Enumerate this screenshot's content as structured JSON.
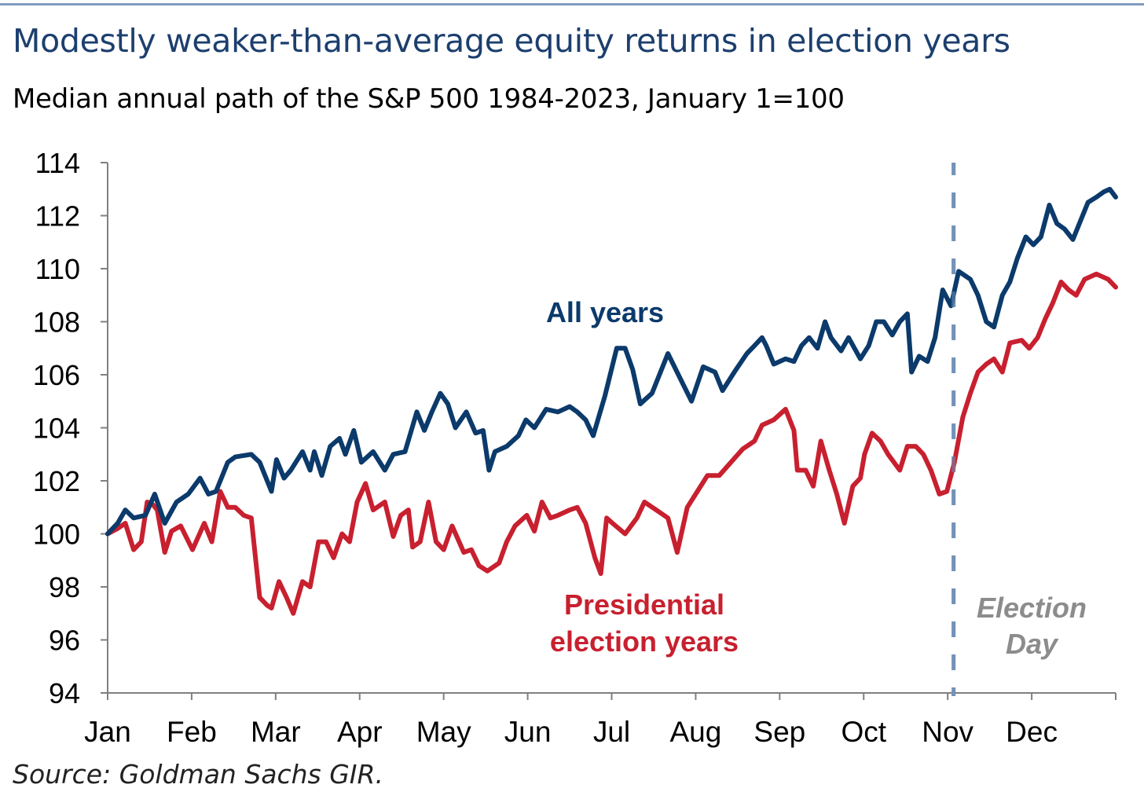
{
  "chart_data": {
    "type": "line",
    "title": "Modestly weaker-than-average equity returns in election years",
    "subtitle": "Median annual path of the S&P 500 1984-2023, January 1=100",
    "source": "Source: Goldman Sachs GIR.",
    "xlabel": "",
    "ylabel": "",
    "x_units": "months since January 1",
    "xlim": [
      0,
      12
    ],
    "ylim": [
      94,
      114
    ],
    "yticks": [
      94,
      96,
      98,
      100,
      102,
      104,
      106,
      108,
      110,
      112,
      114
    ],
    "ytick_labels": [
      "94",
      "96",
      "98",
      "100",
      "102",
      "104",
      "106",
      "108",
      "110",
      "112",
      "114"
    ],
    "xtick_labels": [
      "Jan",
      "Feb",
      "Mar",
      "Apr",
      "May",
      "Jun",
      "Jul",
      "Aug",
      "Sep",
      "Oct",
      "Nov",
      "Dec"
    ],
    "grid": false,
    "annotations": {
      "all_years_label": "All years",
      "election_label_line1": "Presidential",
      "election_label_line2": "election years",
      "election_day_line1": "Election",
      "election_day_line2": "Day",
      "election_day_x": 10.07
    },
    "colors": {
      "all_years": "#0b3a6b",
      "election_years": "#c8202f",
      "election_day": "#7392b8",
      "election_day_text": "#8c8c8c"
    },
    "series": [
      {
        "name": "All years",
        "points": [
          [
            0,
            100.0
          ],
          [
            0.12,
            100.4
          ],
          [
            0.21,
            100.9
          ],
          [
            0.31,
            100.6
          ],
          [
            0.45,
            100.7
          ],
          [
            0.56,
            101.5
          ],
          [
            0.68,
            100.4
          ],
          [
            0.82,
            101.2
          ],
          [
            0.96,
            101.5
          ],
          [
            1.1,
            102.1
          ],
          [
            1.2,
            101.5
          ],
          [
            1.29,
            101.6
          ],
          [
            1.43,
            102.7
          ],
          [
            1.52,
            102.9
          ],
          [
            1.71,
            103.0
          ],
          [
            1.81,
            102.7
          ],
          [
            1.95,
            101.6
          ],
          [
            2.01,
            102.8
          ],
          [
            2.1,
            102.1
          ],
          [
            2.18,
            102.4
          ],
          [
            2.32,
            103.1
          ],
          [
            2.41,
            102.4
          ],
          [
            2.46,
            103.1
          ],
          [
            2.55,
            102.2
          ],
          [
            2.65,
            103.3
          ],
          [
            2.76,
            103.6
          ],
          [
            2.83,
            103.0
          ],
          [
            2.93,
            103.9
          ],
          [
            3.02,
            102.7
          ],
          [
            3.16,
            103.1
          ],
          [
            3.3,
            102.4
          ],
          [
            3.4,
            103.0
          ],
          [
            3.54,
            103.1
          ],
          [
            3.68,
            104.6
          ],
          [
            3.77,
            103.9
          ],
          [
            3.86,
            104.6
          ],
          [
            3.96,
            105.3
          ],
          [
            4.05,
            104.9
          ],
          [
            4.14,
            104.0
          ],
          [
            4.27,
            104.6
          ],
          [
            4.38,
            103.8
          ],
          [
            4.47,
            103.9
          ],
          [
            4.54,
            102.4
          ],
          [
            4.61,
            103.1
          ],
          [
            4.75,
            103.3
          ],
          [
            4.89,
            103.7
          ],
          [
            4.98,
            104.3
          ],
          [
            5.08,
            104.0
          ],
          [
            5.22,
            104.7
          ],
          [
            5.36,
            104.6
          ],
          [
            5.5,
            104.8
          ],
          [
            5.59,
            104.6
          ],
          [
            5.69,
            104.3
          ],
          [
            5.78,
            103.7
          ],
          [
            5.92,
            105.2
          ],
          [
            6.06,
            107.0
          ],
          [
            6.16,
            107.0
          ],
          [
            6.25,
            106.2
          ],
          [
            6.34,
            104.9
          ],
          [
            6.48,
            105.3
          ],
          [
            6.67,
            106.8
          ],
          [
            6.81,
            105.9
          ],
          [
            6.95,
            105.0
          ],
          [
            7.09,
            106.3
          ],
          [
            7.23,
            106.1
          ],
          [
            7.32,
            105.4
          ],
          [
            7.46,
            106.1
          ],
          [
            7.61,
            106.8
          ],
          [
            7.7,
            107.1
          ],
          [
            7.79,
            107.4
          ],
          [
            7.84,
            107.1
          ],
          [
            7.93,
            106.4
          ],
          [
            8.07,
            106.6
          ],
          [
            8.17,
            106.5
          ],
          [
            8.26,
            107.1
          ],
          [
            8.35,
            107.4
          ],
          [
            8.45,
            107.0
          ],
          [
            8.54,
            108.0
          ],
          [
            8.61,
            107.4
          ],
          [
            8.73,
            106.9
          ],
          [
            8.82,
            107.4
          ],
          [
            8.96,
            106.6
          ],
          [
            9.06,
            107.1
          ],
          [
            9.15,
            108.0
          ],
          [
            9.24,
            108.0
          ],
          [
            9.34,
            107.5
          ],
          [
            9.43,
            108.0
          ],
          [
            9.52,
            108.3
          ],
          [
            9.57,
            106.1
          ],
          [
            9.66,
            106.7
          ],
          [
            9.76,
            106.5
          ],
          [
            9.85,
            107.4
          ],
          [
            9.94,
            109.2
          ],
          [
            10.04,
            108.6
          ],
          [
            10.13,
            109.9
          ],
          [
            10.27,
            109.6
          ],
          [
            10.36,
            109.0
          ],
          [
            10.46,
            108.0
          ],
          [
            10.55,
            107.8
          ],
          [
            10.65,
            109.0
          ],
          [
            10.74,
            109.5
          ],
          [
            10.83,
            110.4
          ],
          [
            10.93,
            111.2
          ],
          [
            11.02,
            110.9
          ],
          [
            11.11,
            111.2
          ],
          [
            11.21,
            112.4
          ],
          [
            11.3,
            111.7
          ],
          [
            11.39,
            111.5
          ],
          [
            11.49,
            111.1
          ],
          [
            11.58,
            111.8
          ],
          [
            11.67,
            112.5
          ],
          [
            11.77,
            112.7
          ],
          [
            11.86,
            112.9
          ],
          [
            11.93,
            113.0
          ],
          [
            12.0,
            112.7
          ]
        ]
      },
      {
        "name": "Presidential election years",
        "points": [
          [
            0,
            100.0
          ],
          [
            0.12,
            100.2
          ],
          [
            0.21,
            100.4
          ],
          [
            0.31,
            99.4
          ],
          [
            0.4,
            99.7
          ],
          [
            0.47,
            101.2
          ],
          [
            0.54,
            101.1
          ],
          [
            0.59,
            100.9
          ],
          [
            0.68,
            99.3
          ],
          [
            0.76,
            100.1
          ],
          [
            0.87,
            100.3
          ],
          [
            1.01,
            99.4
          ],
          [
            1.15,
            100.4
          ],
          [
            1.24,
            99.7
          ],
          [
            1.34,
            101.6
          ],
          [
            1.43,
            101.0
          ],
          [
            1.52,
            101.0
          ],
          [
            1.62,
            100.7
          ],
          [
            1.71,
            100.6
          ],
          [
            1.81,
            97.6
          ],
          [
            1.9,
            97.3
          ],
          [
            1.95,
            97.2
          ],
          [
            2.04,
            98.2
          ],
          [
            2.13,
            97.6
          ],
          [
            2.21,
            97.0
          ],
          [
            2.32,
            98.2
          ],
          [
            2.41,
            98.0
          ],
          [
            2.51,
            99.7
          ],
          [
            2.6,
            99.7
          ],
          [
            2.69,
            99.1
          ],
          [
            2.79,
            100.0
          ],
          [
            2.88,
            99.7
          ],
          [
            2.97,
            101.2
          ],
          [
            3.07,
            101.9
          ],
          [
            3.16,
            100.9
          ],
          [
            3.3,
            101.2
          ],
          [
            3.4,
            99.9
          ],
          [
            3.49,
            100.7
          ],
          [
            3.58,
            100.9
          ],
          [
            3.63,
            99.5
          ],
          [
            3.72,
            99.7
          ],
          [
            3.82,
            101.2
          ],
          [
            3.91,
            99.7
          ],
          [
            4.0,
            99.4
          ],
          [
            4.1,
            100.3
          ],
          [
            4.24,
            99.3
          ],
          [
            4.33,
            99.4
          ],
          [
            4.42,
            98.8
          ],
          [
            4.52,
            98.6
          ],
          [
            4.66,
            98.9
          ],
          [
            4.75,
            99.7
          ],
          [
            4.85,
            100.3
          ],
          [
            4.99,
            100.7
          ],
          [
            5.08,
            100.1
          ],
          [
            5.17,
            101.2
          ],
          [
            5.27,
            100.6
          ],
          [
            5.36,
            100.7
          ],
          [
            5.5,
            100.9
          ],
          [
            5.59,
            101.0
          ],
          [
            5.69,
            100.4
          ],
          [
            5.8,
            99.1
          ],
          [
            5.87,
            98.5
          ],
          [
            5.94,
            100.6
          ],
          [
            6.01,
            100.4
          ],
          [
            6.16,
            100.0
          ],
          [
            6.3,
            100.6
          ],
          [
            6.39,
            101.2
          ],
          [
            6.53,
            100.9
          ],
          [
            6.67,
            100.6
          ],
          [
            6.78,
            99.3
          ],
          [
            6.9,
            101.0
          ],
          [
            7.0,
            101.5
          ],
          [
            7.14,
            102.2
          ],
          [
            7.28,
            102.2
          ],
          [
            7.42,
            102.7
          ],
          [
            7.56,
            103.2
          ],
          [
            7.7,
            103.5
          ],
          [
            7.79,
            104.1
          ],
          [
            7.93,
            104.3
          ],
          [
            8.07,
            104.7
          ],
          [
            8.17,
            103.9
          ],
          [
            8.21,
            102.4
          ],
          [
            8.31,
            102.4
          ],
          [
            8.4,
            101.8
          ],
          [
            8.49,
            103.5
          ],
          [
            8.59,
            102.4
          ],
          [
            8.68,
            101.5
          ],
          [
            8.77,
            100.4
          ],
          [
            8.87,
            101.8
          ],
          [
            8.96,
            102.1
          ],
          [
            9.01,
            103.0
          ],
          [
            9.1,
            103.8
          ],
          [
            9.2,
            103.5
          ],
          [
            9.29,
            103.0
          ],
          [
            9.43,
            102.4
          ],
          [
            9.52,
            103.3
          ],
          [
            9.62,
            103.3
          ],
          [
            9.71,
            103.0
          ],
          [
            9.8,
            102.4
          ],
          [
            9.9,
            101.5
          ],
          [
            9.99,
            101.6
          ],
          [
            10.08,
            102.7
          ],
          [
            10.18,
            104.4
          ],
          [
            10.27,
            105.3
          ],
          [
            10.36,
            106.1
          ],
          [
            10.46,
            106.4
          ],
          [
            10.55,
            106.6
          ],
          [
            10.65,
            106.1
          ],
          [
            10.74,
            107.2
          ],
          [
            10.88,
            107.3
          ],
          [
            10.97,
            107.0
          ],
          [
            11.07,
            107.4
          ],
          [
            11.16,
            108.1
          ],
          [
            11.25,
            108.7
          ],
          [
            11.35,
            109.5
          ],
          [
            11.44,
            109.2
          ],
          [
            11.53,
            109.0
          ],
          [
            11.63,
            109.6
          ],
          [
            11.77,
            109.8
          ],
          [
            11.91,
            109.6
          ],
          [
            12.0,
            109.3
          ]
        ]
      }
    ]
  }
}
